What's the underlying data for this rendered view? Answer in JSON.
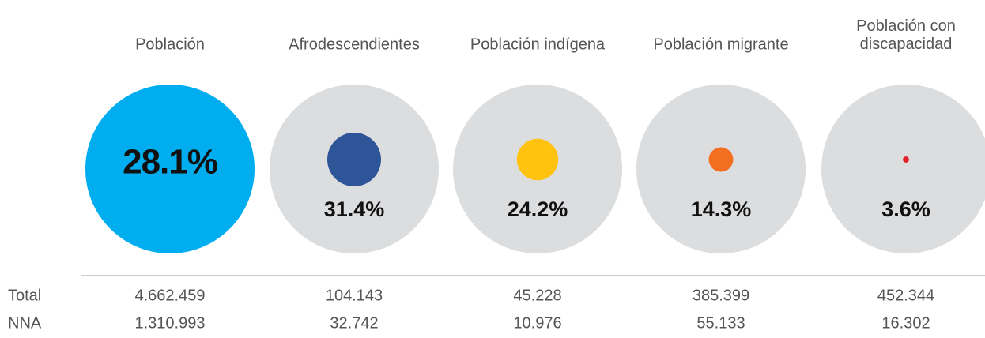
{
  "chart_data": {
    "type": "bubble",
    "categories": [
      "Población",
      "Afrodescendientes",
      "Población indígena",
      "Población migrante",
      "Población con discapacidad"
    ],
    "values": [
      28.1,
      31.4,
      24.2,
      14.3,
      3.6
    ],
    "value_labels": [
      "28.1%",
      "31.4%",
      "24.2%",
      "14.3%",
      "3.6%"
    ],
    "colors": [
      "#00aeef",
      "#2e5597",
      "#ffc20e",
      "#f26f21",
      "#e32027"
    ]
  },
  "table": {
    "row_labels": [
      "Total",
      "NNA"
    ],
    "rows": [
      [
        "4.662.459",
        "104.143",
        "45.228",
        "385.399",
        "452.344"
      ],
      [
        "1.310.993",
        "32.742",
        "10.976",
        "55.133",
        "16.302"
      ]
    ]
  }
}
